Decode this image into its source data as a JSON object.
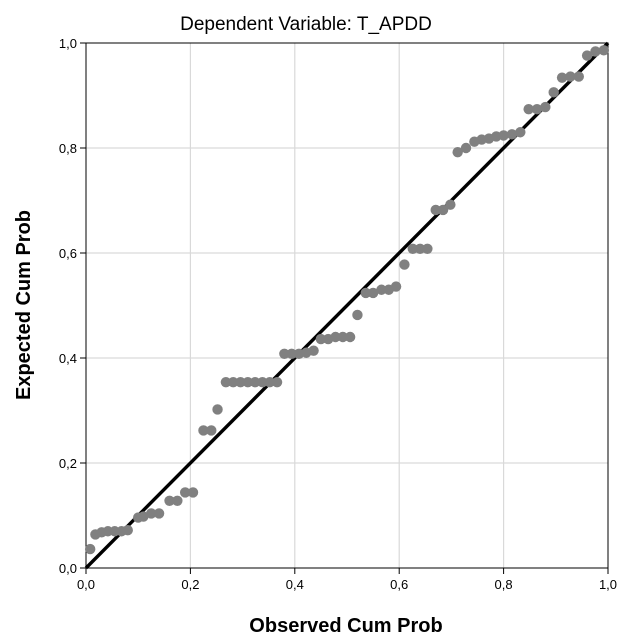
{
  "chart_data": {
    "type": "scatter",
    "title": "Dependent Variable: T_APDD",
    "xlabel": "Observed Cum Prob",
    "ylabel": "Expected Cum Prob",
    "xlim": [
      0,
      1
    ],
    "ylim": [
      0,
      1
    ],
    "grid": true,
    "x_ticks": [
      "0,0",
      "0,2",
      "0,4",
      "0,6",
      "0,8",
      "1,0"
    ],
    "y_ticks": [
      "0,0",
      "0,2",
      "0,4",
      "0,6",
      "0,8",
      "1,0"
    ],
    "reference_line": {
      "from": [
        0,
        0
      ],
      "to": [
        1,
        1
      ]
    },
    "colors": {
      "points": "#808080",
      "line": "#000000",
      "grid": "#d9d9d9",
      "frame": "#000000"
    },
    "points": [
      [
        0.008,
        0.036
      ],
      [
        0.018,
        0.064
      ],
      [
        0.03,
        0.068
      ],
      [
        0.042,
        0.07
      ],
      [
        0.055,
        0.07
      ],
      [
        0.068,
        0.07
      ],
      [
        0.08,
        0.072
      ],
      [
        0.1,
        0.096
      ],
      [
        0.11,
        0.098
      ],
      [
        0.125,
        0.104
      ],
      [
        0.14,
        0.104
      ],
      [
        0.16,
        0.128
      ],
      [
        0.175,
        0.128
      ],
      [
        0.19,
        0.144
      ],
      [
        0.205,
        0.144
      ],
      [
        0.225,
        0.262
      ],
      [
        0.24,
        0.262
      ],
      [
        0.252,
        0.302
      ],
      [
        0.268,
        0.354
      ],
      [
        0.282,
        0.354
      ],
      [
        0.296,
        0.354
      ],
      [
        0.31,
        0.354
      ],
      [
        0.324,
        0.354
      ],
      [
        0.338,
        0.354
      ],
      [
        0.352,
        0.354
      ],
      [
        0.366,
        0.354
      ],
      [
        0.38,
        0.408
      ],
      [
        0.394,
        0.408
      ],
      [
        0.408,
        0.408
      ],
      [
        0.422,
        0.41
      ],
      [
        0.436,
        0.414
      ],
      [
        0.45,
        0.436
      ],
      [
        0.464,
        0.436
      ],
      [
        0.478,
        0.44
      ],
      [
        0.492,
        0.44
      ],
      [
        0.506,
        0.44
      ],
      [
        0.52,
        0.482
      ],
      [
        0.536,
        0.524
      ],
      [
        0.55,
        0.524
      ],
      [
        0.566,
        0.53
      ],
      [
        0.58,
        0.53
      ],
      [
        0.594,
        0.536
      ],
      [
        0.61,
        0.578
      ],
      [
        0.626,
        0.608
      ],
      [
        0.64,
        0.608
      ],
      [
        0.654,
        0.608
      ],
      [
        0.67,
        0.682
      ],
      [
        0.684,
        0.682
      ],
      [
        0.698,
        0.692
      ],
      [
        0.712,
        0.792
      ],
      [
        0.728,
        0.8
      ],
      [
        0.744,
        0.812
      ],
      [
        0.758,
        0.816
      ],
      [
        0.772,
        0.818
      ],
      [
        0.786,
        0.822
      ],
      [
        0.8,
        0.824
      ],
      [
        0.816,
        0.826
      ],
      [
        0.832,
        0.83
      ],
      [
        0.848,
        0.874
      ],
      [
        0.864,
        0.874
      ],
      [
        0.88,
        0.878
      ],
      [
        0.896,
        0.906
      ],
      [
        0.912,
        0.934
      ],
      [
        0.928,
        0.936
      ],
      [
        0.944,
        0.936
      ],
      [
        0.96,
        0.976
      ],
      [
        0.976,
        0.984
      ],
      [
        0.992,
        0.986
      ]
    ]
  }
}
